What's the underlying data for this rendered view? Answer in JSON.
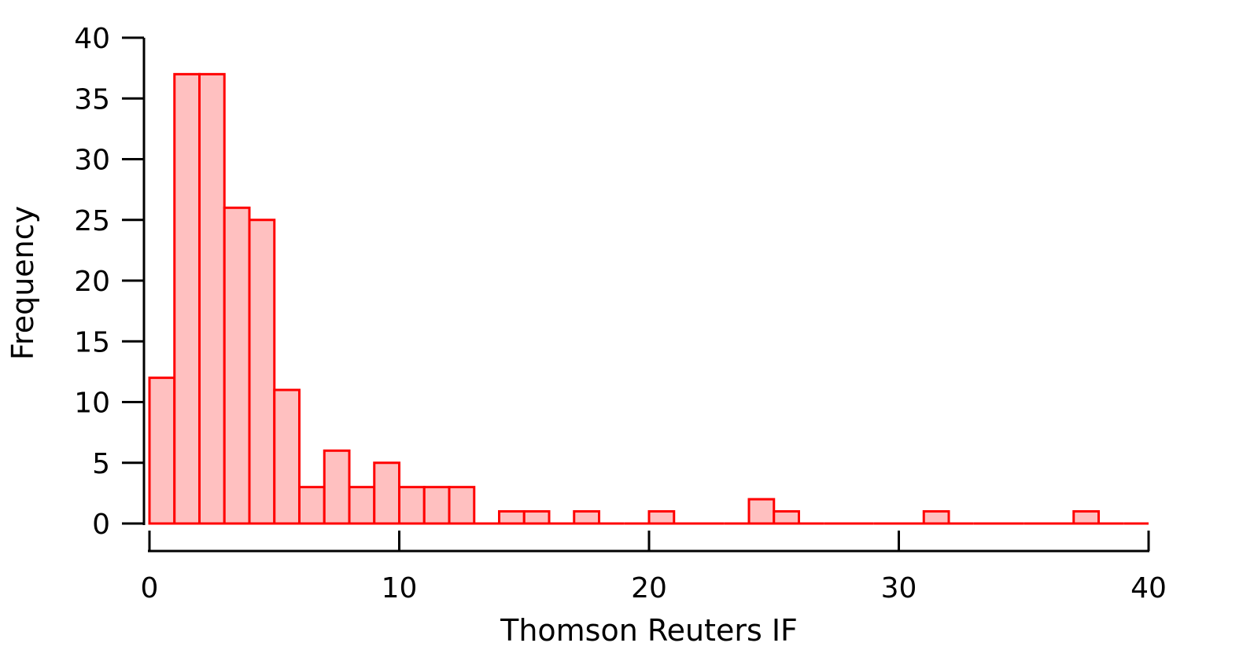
{
  "chart_data": {
    "type": "bar",
    "subtype": "histogram",
    "xlabel": "Thomson Reuters IF",
    "ylabel": "Frequency",
    "xlim": [
      0,
      40
    ],
    "ylim": [
      0,
      40
    ],
    "bin_width": 1,
    "x_ticks": [
      0,
      10,
      20,
      30,
      40
    ],
    "y_ticks": [
      0,
      5,
      10,
      15,
      20,
      25,
      30,
      35,
      40
    ],
    "bin_starts": [
      0,
      1,
      2,
      3,
      4,
      5,
      6,
      7,
      8,
      9,
      10,
      11,
      12,
      13,
      14,
      15,
      16,
      17,
      18,
      19,
      20,
      21,
      22,
      23,
      24,
      25,
      26,
      27,
      28,
      29,
      30,
      31,
      32,
      33,
      34,
      35,
      36,
      37,
      38,
      39
    ],
    "values": [
      12,
      37,
      37,
      26,
      25,
      11,
      3,
      6,
      3,
      5,
      3,
      3,
      3,
      0,
      1,
      1,
      0,
      1,
      0,
      0,
      1,
      0,
      0,
      0,
      2,
      1,
      0,
      0,
      0,
      0,
      0,
      1,
      0,
      0,
      0,
      0,
      0,
      1,
      0,
      0
    ],
    "grid": false,
    "fill_color": "#ffc0c0",
    "edge_color": "#ff0000"
  }
}
